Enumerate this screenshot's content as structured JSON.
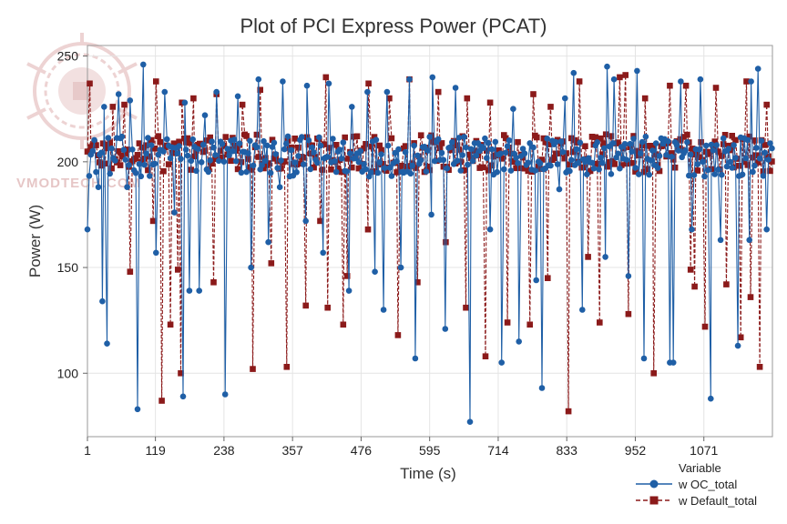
{
  "watermark": "VMODTECH.COM",
  "colors": {
    "oc": "#1f5fa6",
    "def": "#8b1a1a",
    "grid": "#e4e4e4",
    "frame": "#9a9a9a"
  },
  "chart_data": {
    "type": "line",
    "title": "Plot of PCI Express Power (PCAT)",
    "xlabel": "Time (s)",
    "ylabel": "Power (W)",
    "xlim": [
      1,
      1190
    ],
    "ylim": [
      70,
      255
    ],
    "xticks": [
      "1",
      "119",
      "238",
      "357",
      "476",
      "595",
      "714",
      "833",
      "952",
      "1071"
    ],
    "yticks": [
      "100",
      "150",
      "200",
      "250"
    ],
    "grid": true,
    "legend": {
      "title": "Variable",
      "position": "bottom-right"
    },
    "series": [
      {
        "name": "w OC_total",
        "marker": "circle",
        "line": "solid",
        "typical_range": [
          193,
          212
        ],
        "highs": [
          [
            30,
            226
          ],
          [
            55,
            232
          ],
          [
            75,
            229
          ],
          [
            98,
            246
          ],
          [
            135,
            233
          ],
          [
            150,
            238
          ],
          [
            170,
            228
          ],
          [
            205,
            222
          ],
          [
            225,
            233
          ],
          [
            262,
            231
          ],
          [
            298,
            239
          ],
          [
            340,
            238
          ],
          [
            382,
            236
          ],
          [
            420,
            237
          ],
          [
            460,
            226
          ],
          [
            487,
            233
          ],
          [
            521,
            233
          ],
          [
            560,
            239
          ],
          [
            600,
            240
          ],
          [
            640,
            235
          ],
          [
            700,
            233
          ],
          [
            740,
            225
          ],
          [
            789,
            228
          ],
          [
            830,
            230
          ],
          [
            845,
            242
          ],
          [
            903,
            245
          ],
          [
            915,
            239
          ],
          [
            955,
            243
          ],
          [
            1013,
            242
          ],
          [
            1031,
            238
          ],
          [
            1065,
            239
          ],
          [
            1082,
            248
          ],
          [
            1128,
            247
          ],
          [
            1153,
            238
          ],
          [
            1165,
            244
          ],
          [
            1180,
            232
          ]
        ],
        "lows": [
          [
            1,
            168
          ],
          [
            20,
            188
          ],
          [
            27,
            134
          ],
          [
            35,
            114
          ],
          [
            70,
            188
          ],
          [
            88,
            83
          ],
          [
            120,
            157
          ],
          [
            152,
            176
          ],
          [
            167,
            89
          ],
          [
            178,
            139
          ],
          [
            195,
            139
          ],
          [
            240,
            90
          ],
          [
            285,
            150
          ],
          [
            315,
            162
          ],
          [
            335,
            188
          ],
          [
            380,
            172
          ],
          [
            410,
            157
          ],
          [
            455,
            139
          ],
          [
            500,
            148
          ],
          [
            515,
            130
          ],
          [
            545,
            150
          ],
          [
            570,
            107
          ],
          [
            598,
            175
          ],
          [
            622,
            121
          ],
          [
            665,
            77
          ],
          [
            700,
            168
          ],
          [
            720,
            105
          ],
          [
            750,
            115
          ],
          [
            780,
            144
          ],
          [
            790,
            93
          ],
          [
            820,
            187
          ],
          [
            860,
            130
          ],
          [
            900,
            155
          ],
          [
            940,
            146
          ],
          [
            967,
            107
          ],
          [
            1012,
            105
          ],
          [
            1018,
            105
          ],
          [
            1050,
            168
          ],
          [
            1083,
            88
          ],
          [
            1100,
            163
          ],
          [
            1130,
            113
          ],
          [
            1150,
            163
          ],
          [
            1180,
            168
          ]
        ]
      },
      {
        "name": "w Default_total",
        "marker": "square",
        "line": "dashed",
        "typical_range": [
          195,
          213
        ],
        "highs": [
          [
            5,
            237
          ],
          [
            45,
            226
          ],
          [
            65,
            227
          ],
          [
            120,
            238
          ],
          [
            165,
            228
          ],
          [
            185,
            230
          ],
          [
            225,
            232
          ],
          [
            270,
            227
          ],
          [
            301,
            234
          ],
          [
            345,
            240
          ],
          [
            380,
            238
          ],
          [
            415,
            240
          ],
          [
            450,
            234
          ],
          [
            489,
            237
          ],
          [
            525,
            230
          ],
          [
            560,
            239
          ],
          [
            610,
            233
          ],
          [
            660,
            230
          ],
          [
            700,
            228
          ],
          [
            775,
            232
          ],
          [
            805,
            226
          ],
          [
            855,
            238
          ],
          [
            925,
            240
          ],
          [
            935,
            241
          ],
          [
            969,
            230
          ],
          [
            1012,
            236
          ],
          [
            1040,
            236
          ],
          [
            1092,
            235
          ],
          [
            1145,
            238
          ],
          [
            1180,
            227
          ]
        ],
        "lows": [
          [
            55,
            205
          ],
          [
            75,
            148
          ],
          [
            115,
            172
          ],
          [
            130,
            87
          ],
          [
            145,
            123
          ],
          [
            158,
            149
          ],
          [
            163,
            100
          ],
          [
            220,
            143
          ],
          [
            288,
            102
          ],
          [
            320,
            152
          ],
          [
            347,
            103
          ],
          [
            380,
            132
          ],
          [
            405,
            172
          ],
          [
            418,
            131
          ],
          [
            445,
            123
          ],
          [
            452,
            146
          ],
          [
            488,
            168
          ],
          [
            540,
            118
          ],
          [
            574,
            143
          ],
          [
            623,
            162
          ],
          [
            658,
            131
          ],
          [
            692,
            108
          ],
          [
            730,
            124
          ],
          [
            769,
            123
          ],
          [
            800,
            145
          ],
          [
            836,
            82
          ],
          [
            870,
            155
          ],
          [
            890,
            124
          ],
          [
            940,
            128
          ],
          [
            984,
            100
          ],
          [
            1048,
            149
          ],
          [
            1055,
            141
          ],
          [
            1073,
            122
          ],
          [
            1110,
            142
          ],
          [
            1135,
            117
          ],
          [
            1152,
            136
          ],
          [
            1168,
            103
          ]
        ]
      }
    ]
  }
}
